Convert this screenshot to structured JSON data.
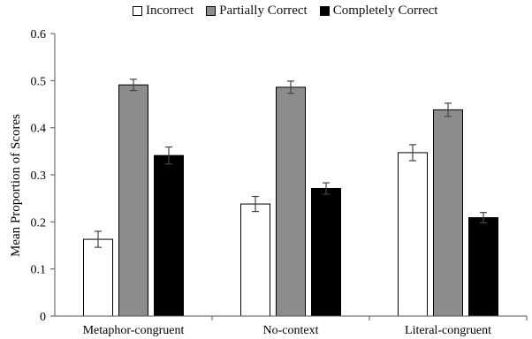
{
  "chart_data": {
    "type": "bar",
    "categories": [
      "Metaphor-congruent",
      "No-context",
      "Literal-congruent"
    ],
    "series": [
      {
        "name": "Incorrect",
        "color": "#ffffff",
        "values": [
          0.163,
          0.238,
          0.347
        ],
        "errors": [
          0.017,
          0.016,
          0.017
        ]
      },
      {
        "name": "Partially Correct",
        "color": "#8c8c8c",
        "values": [
          0.491,
          0.486,
          0.438
        ],
        "errors": [
          0.012,
          0.013,
          0.014
        ]
      },
      {
        "name": "Completely Correct",
        "color": "#000000",
        "values": [
          0.341,
          0.271,
          0.209
        ],
        "errors": [
          0.018,
          0.012,
          0.011
        ]
      }
    ],
    "ylabel": "Mean Proportion of Scores",
    "ylim": [
      0,
      0.6
    ],
    "yticks": [
      "0",
      "0.1",
      "0.2",
      "0.3",
      "0.4",
      "0.5",
      "0.6"
    ],
    "legend_position": "top",
    "grid": false
  }
}
